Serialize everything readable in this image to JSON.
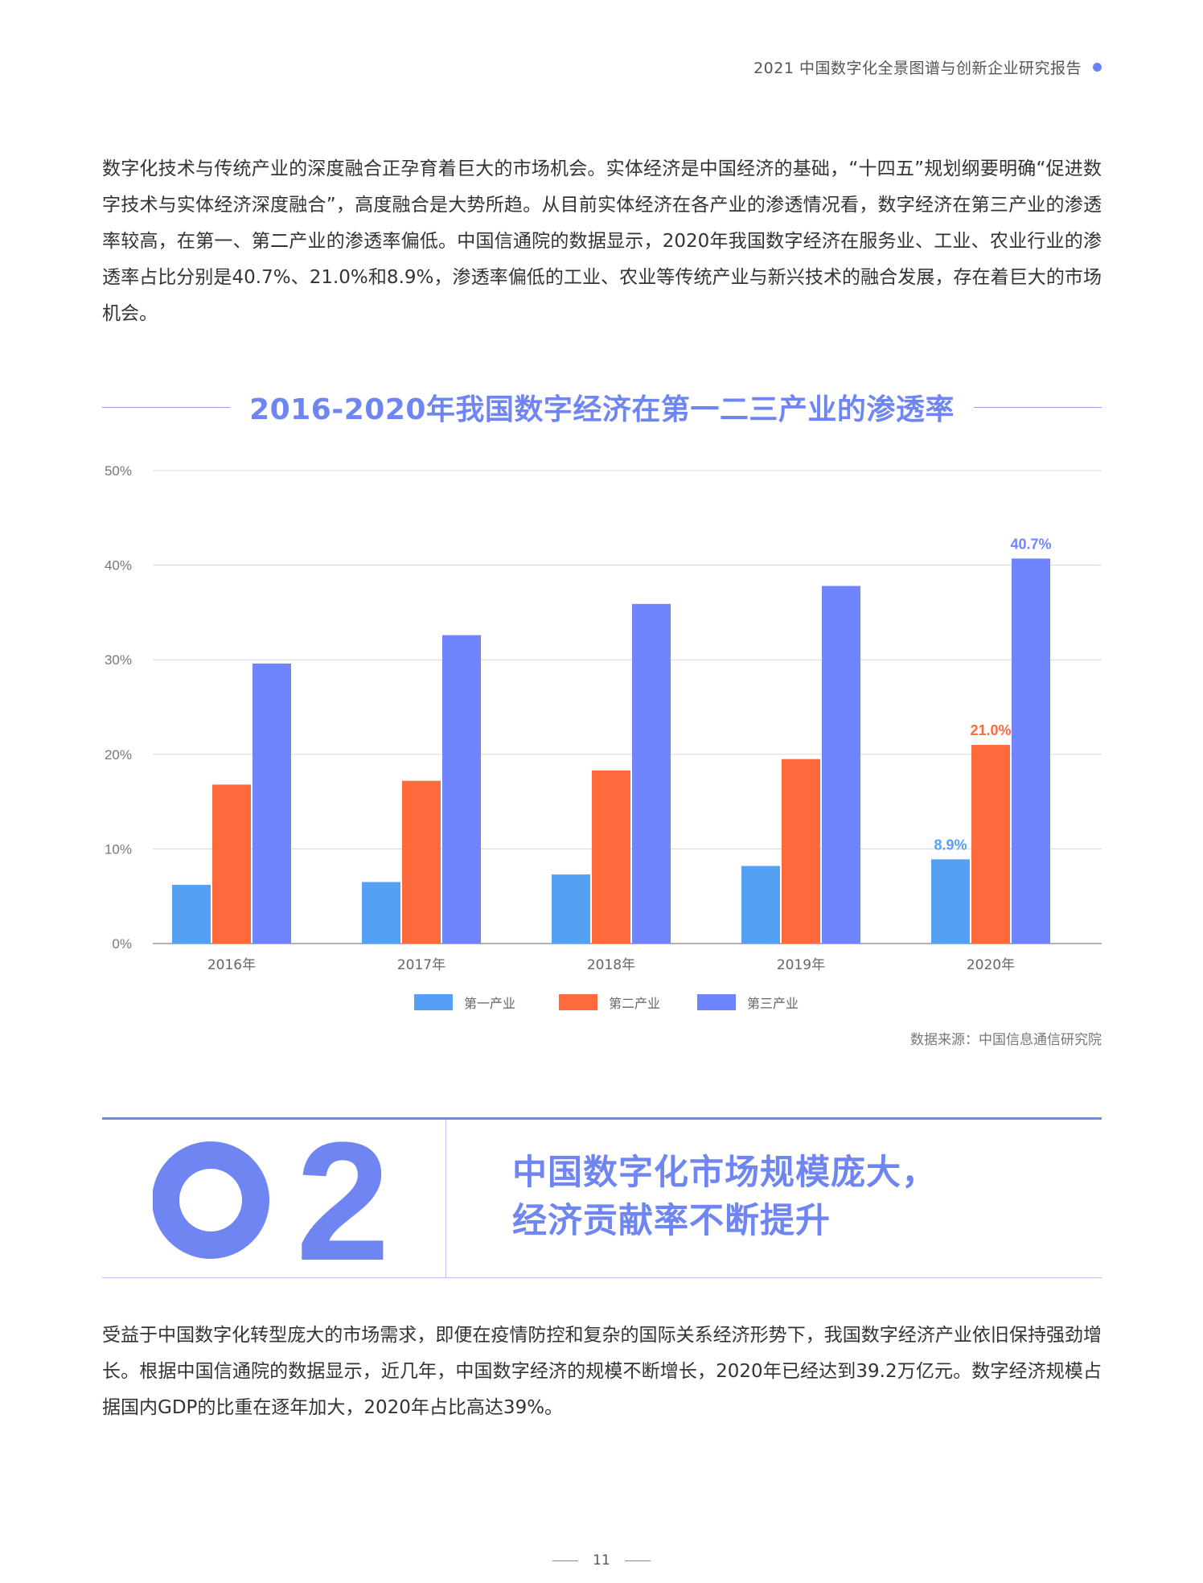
{
  "header": {
    "title": "2021 中国数字化全景图谱与创新企业研究报告"
  },
  "intro_paragraph": "数字化技术与传统产业的深度融合正孕育着巨大的市场机会。实体经济是中国经济的基础，“十四五”规划纲要明确“促进数字技术与实体经济深度融合”，高度融合是大势所趋。从目前实体经济在各产业的渗透情况看，数字经济在第三产业的渗透率较高，在第一、第二产业的渗透率偏低。中国信通院的数据显示，2020年我国数字经济在服务业、工业、农业行业的渗透率占比分别是40.7%、21.0%和8.9%，渗透率偏低的工业、农业等传统产业与新兴技术的融合发展，存在着巨大的市场机会。",
  "chart_title": "2016-2020年我国数字经济在第一二三产业的渗透率",
  "chart_data": {
    "type": "bar",
    "title": "2016-2020年我国数字经济在第一二三产业的渗透率",
    "categories": [
      "2016年",
      "2017年",
      "2018年",
      "2019年",
      "2020年"
    ],
    "series": [
      {
        "name": "第一产业",
        "color": "#55a0f5",
        "values": [
          6.2,
          6.5,
          7.3,
          8.2,
          8.9
        ]
      },
      {
        "name": "第二产业",
        "color": "#ff6a3d",
        "values": [
          16.8,
          17.2,
          18.3,
          19.5,
          21.0
        ]
      },
      {
        "name": "第三产业",
        "color": "#6f84ff",
        "values": [
          29.6,
          32.6,
          35.9,
          37.8,
          40.7
        ]
      }
    ],
    "yticks": [
      "0%",
      "10%",
      "20%",
      "30%",
      "40%",
      "50%"
    ],
    "ylim": [
      0,
      50
    ],
    "grid": true,
    "legend_position": "bottom",
    "annotations": [
      {
        "category_index": 4,
        "series_index": 0,
        "label": "8.9%"
      },
      {
        "category_index": 4,
        "series_index": 1,
        "label": "21.0%"
      },
      {
        "category_index": 4,
        "series_index": 2,
        "label": "40.7%"
      }
    ]
  },
  "source_note": "数据来源：中国信息通信研究院",
  "section": {
    "number": "02",
    "heading_line1": "中国数字化市场规模庞大，",
    "heading_line2": "经济贡献率不断提升"
  },
  "body_paragraph": "受益于中国数字化转型庞大的市场需求，即便在疫情防控和复杂的国际关系经济形势下，我国数字经济产业依旧保持强劲增长。根据中国信通院的数据显示，近几年，中国数字经济的规模不断增长，2020年已经达到39.2万亿元。数字经济规模占据国内GDP的比重在逐年加大，2020年占比高达39%。",
  "footer": {
    "page_number": "11"
  },
  "colors": {
    "accent": "#6f85f2"
  }
}
